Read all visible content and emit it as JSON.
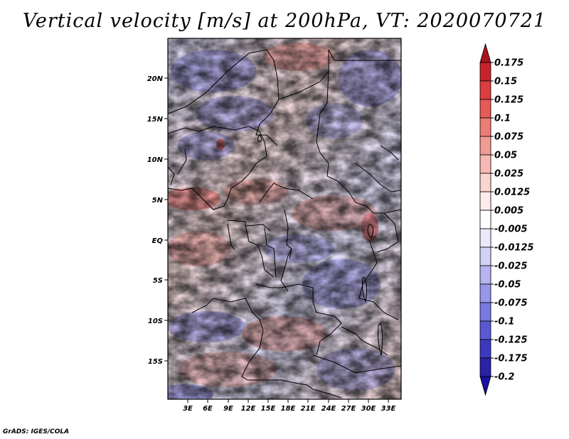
{
  "title": "Vertical velocity [m/s] at 200hPa, VT: 2020070721",
  "footer": "GrADS: IGES/COLA",
  "map": {
    "lat_labels": [
      "20N",
      "15N",
      "10N",
      "5N",
      "EQ",
      "5S",
      "10S",
      "15S"
    ],
    "lon_labels": [
      "3E",
      "6E",
      "9E",
      "12E",
      "15E",
      "18E",
      "21E",
      "24E",
      "27E",
      "30E",
      "33E"
    ]
  },
  "colorbar": {
    "labels": [
      "0.175",
      "0.15",
      "0.125",
      "0.1",
      "0.075",
      "0.05",
      "0.025",
      "0.0125",
      "0.005",
      "-0.005",
      "-0.0125",
      "-0.025",
      "-0.05",
      "-0.075",
      "-0.1",
      "-0.125",
      "-0.175",
      "-0.2"
    ],
    "colors": [
      "#a8141e",
      "#c8232b",
      "#dd3d3d",
      "#e85a56",
      "#ee7c76",
      "#f39a94",
      "#f7b8b3",
      "#fad4d0",
      "#fdecea",
      "#ffffff",
      "#e9e9fb",
      "#d2d1f6",
      "#b5b3f0",
      "#9896ea",
      "#7a78e2",
      "#5b58d4",
      "#3d38c0",
      "#2a22a8",
      "#1a10a0"
    ]
  }
}
